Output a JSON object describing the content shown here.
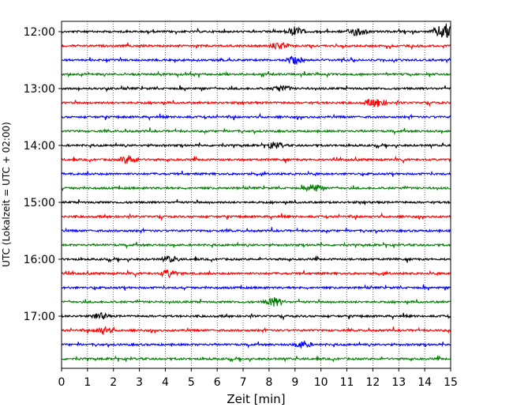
{
  "chart_data": {
    "type": "line",
    "title": "",
    "xlabel": "Zeit  [min]",
    "ylabel": "UTC (Lokalzeit = UTC + 02:00)",
    "xlim": [
      0,
      15
    ],
    "x_ticks": [
      "0",
      "1",
      "2",
      "3",
      "4",
      "5",
      "6",
      "7",
      "8",
      "9",
      "10",
      "11",
      "12",
      "13",
      "14",
      "15"
    ],
    "y_tick_labels": [
      "12:00",
      "13:00",
      "14:00",
      "15:00",
      "16:00",
      "17:00"
    ],
    "grid": {
      "x": true,
      "y": false
    },
    "trace_colors": [
      "#000000",
      "#ff0000",
      "#0000ff",
      "#008000"
    ],
    "traces": [
      {
        "start": "12:00",
        "color": "#000000",
        "events": [
          {
            "t": 9.0,
            "amp": 0.5
          },
          {
            "t": 11.4,
            "amp": 0.5
          },
          {
            "t": 14.8,
            "amp": 1.0
          }
        ]
      },
      {
        "start": "12:15",
        "color": "#ff0000",
        "events": [
          {
            "t": 8.4,
            "amp": 0.4
          }
        ]
      },
      {
        "start": "12:30",
        "color": "#0000ff",
        "events": [
          {
            "t": 9.0,
            "amp": 0.4
          }
        ]
      },
      {
        "start": "12:45",
        "color": "#008000",
        "events": []
      },
      {
        "start": "13:00",
        "color": "#000000",
        "events": [
          {
            "t": 8.5,
            "amp": 0.4
          }
        ]
      },
      {
        "start": "13:15",
        "color": "#ff0000",
        "events": [
          {
            "t": 12.1,
            "amp": 0.6
          }
        ]
      },
      {
        "start": "13:30",
        "color": "#0000ff",
        "events": []
      },
      {
        "start": "13:45",
        "color": "#008000",
        "events": []
      },
      {
        "start": "14:00",
        "color": "#000000",
        "events": [
          {
            "t": 8.2,
            "amp": 0.4
          }
        ]
      },
      {
        "start": "14:15",
        "color": "#ff0000",
        "events": [
          {
            "t": 2.6,
            "amp": 0.5
          }
        ]
      },
      {
        "start": "14:30",
        "color": "#0000ff",
        "events": []
      },
      {
        "start": "14:45",
        "color": "#008000",
        "events": [
          {
            "t": 9.7,
            "amp": 0.5
          }
        ]
      },
      {
        "start": "15:00",
        "color": "#000000",
        "events": []
      },
      {
        "start": "15:15",
        "color": "#ff0000",
        "events": []
      },
      {
        "start": "15:30",
        "color": "#0000ff",
        "events": []
      },
      {
        "start": "15:45",
        "color": "#008000",
        "events": []
      },
      {
        "start": "16:00",
        "color": "#000000",
        "events": [
          {
            "t": 4.2,
            "amp": 0.3
          }
        ]
      },
      {
        "start": "16:15",
        "color": "#ff0000",
        "events": [
          {
            "t": 4.1,
            "amp": 0.4
          }
        ]
      },
      {
        "start": "16:30",
        "color": "#0000ff",
        "events": []
      },
      {
        "start": "16:45",
        "color": "#008000",
        "events": [
          {
            "t": 8.2,
            "amp": 0.5
          }
        ]
      },
      {
        "start": "17:00",
        "color": "#000000",
        "events": [
          {
            "t": 1.5,
            "amp": 0.3
          }
        ]
      },
      {
        "start": "17:15",
        "color": "#ff0000",
        "events": [
          {
            "t": 1.6,
            "amp": 0.4
          }
        ]
      },
      {
        "start": "17:30",
        "color": "#0000ff",
        "events": [
          {
            "t": 9.3,
            "amp": 0.4
          }
        ]
      },
      {
        "start": "17:45",
        "color": "#008000",
        "events": []
      }
    ]
  }
}
